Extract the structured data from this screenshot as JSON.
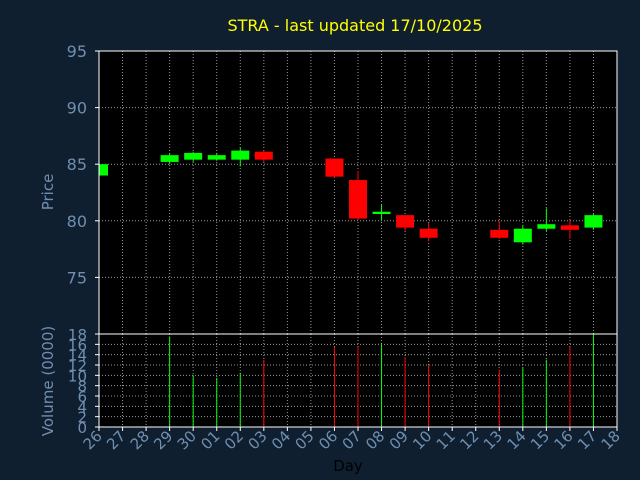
{
  "chart_data": {
    "type": "candlestick",
    "title": "STRA - last updated 17/10/2025",
    "xlabel": "Day",
    "price_panel": {
      "ylabel": "Price",
      "ylim": [
        70,
        95
      ],
      "yticks": [
        75,
        80,
        85,
        90,
        95
      ]
    },
    "volume_panel": {
      "ylabel": "Volume (0000)",
      "ylim": [
        0,
        18
      ],
      "yticks": [
        0,
        2,
        4,
        6,
        8,
        10,
        12,
        14,
        16,
        18
      ]
    },
    "x_ticks": [
      "26",
      "27",
      "28",
      "29",
      "30",
      "01",
      "02",
      "03",
      "04",
      "05",
      "06",
      "07",
      "08",
      "09",
      "10",
      "11",
      "12",
      "13",
      "14",
      "15",
      "16",
      "17",
      "18"
    ],
    "candles": [
      {
        "day": "26",
        "open": 84.0,
        "high": 85.0,
        "low": 84.0,
        "close": 85.0,
        "volume": 0
      },
      {
        "day": "29",
        "open": 85.2,
        "high": 86.0,
        "low": 85.0,
        "close": 85.8,
        "volume": 17.5
      },
      {
        "day": "30",
        "open": 85.4,
        "high": 86.1,
        "low": 85.2,
        "close": 86.0,
        "volume": 10
      },
      {
        "day": "01",
        "open": 85.4,
        "high": 86.0,
        "low": 85.3,
        "close": 85.8,
        "volume": 9.5
      },
      {
        "day": "02",
        "open": 85.4,
        "high": 86.5,
        "low": 84.8,
        "close": 86.2,
        "volume": 10.5
      },
      {
        "day": "03",
        "open": 86.1,
        "high": 86.2,
        "low": 85.2,
        "close": 85.4,
        "volume": 13
      },
      {
        "day": "06",
        "open": 85.5,
        "high": 85.5,
        "low": 83.8,
        "close": 83.9,
        "volume": 15.5
      },
      {
        "day": "07",
        "open": 83.6,
        "high": 84.4,
        "low": 80.1,
        "close": 80.2,
        "volume": 15.5
      },
      {
        "day": "08",
        "open": 80.6,
        "high": 81.4,
        "low": 80.1,
        "close": 80.8,
        "volume": 16
      },
      {
        "day": "09",
        "open": 80.5,
        "high": 80.5,
        "low": 79.1,
        "close": 79.4,
        "volume": 13.5
      },
      {
        "day": "10",
        "open": 79.3,
        "high": 79.8,
        "low": 78.2,
        "close": 78.5,
        "volume": 12
      },
      {
        "day": "13",
        "open": 79.2,
        "high": 80.0,
        "low": 78.4,
        "close": 78.5,
        "volume": 11
      },
      {
        "day": "14",
        "open": 78.1,
        "high": 79.6,
        "low": 77.9,
        "close": 79.3,
        "volume": 11.5
      },
      {
        "day": "15",
        "open": 79.3,
        "high": 81.1,
        "low": 79.1,
        "close": 79.7,
        "volume": 13
      },
      {
        "day": "16",
        "open": 79.6,
        "high": 80.1,
        "low": 78.4,
        "close": 79.2,
        "volume": 15.5
      },
      {
        "day": "17",
        "open": 79.4,
        "high": 80.6,
        "low": 79.2,
        "close": 80.5,
        "volume": 18
      }
    ],
    "colors": {
      "background": "#0f1f30",
      "plot_background": "#000000",
      "up": "#00ff00",
      "down": "#ff0000",
      "title": "#ffff00",
      "axis_text": "#6f8fb0",
      "axis_line": "#ffffff",
      "grid": "#ffffff"
    },
    "grid": "dotted"
  }
}
